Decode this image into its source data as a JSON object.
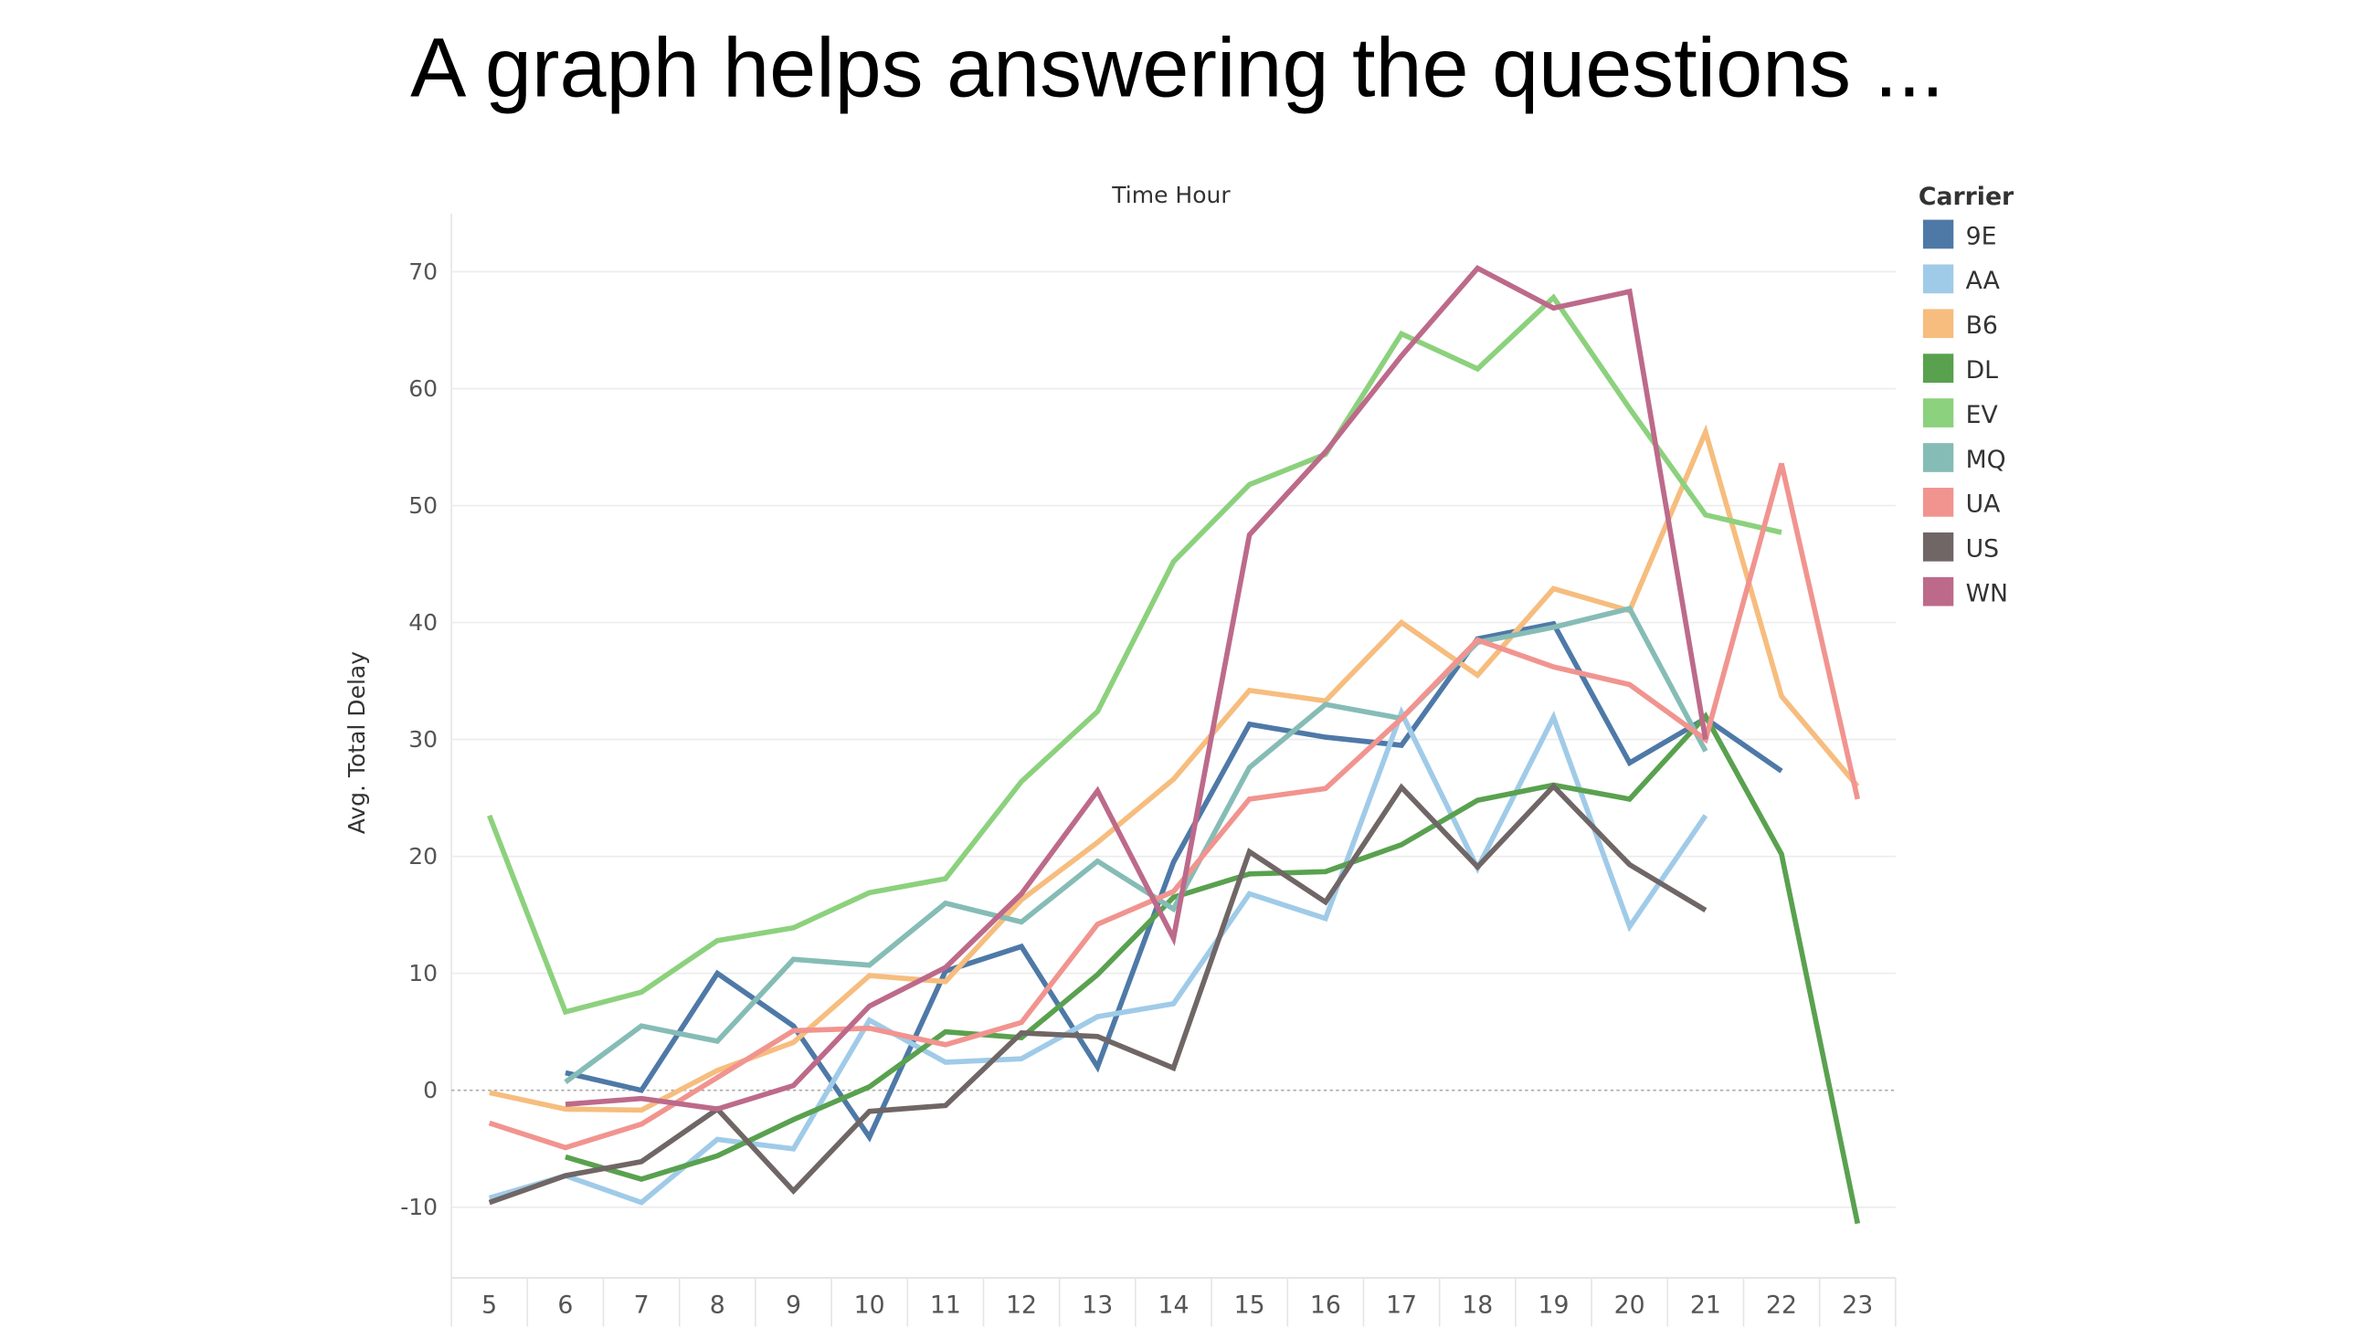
{
  "slide_title": "A graph helps answering the questions ...",
  "chart_data": {
    "type": "line",
    "title": "Time Hour",
    "xlabel": "Time Hour",
    "ylabel": "Avg. Total Delay",
    "x": [
      5,
      6,
      7,
      8,
      9,
      10,
      11,
      12,
      13,
      14,
      15,
      16,
      17,
      18,
      19,
      20,
      21,
      22,
      23
    ],
    "ylim": [
      -16,
      75
    ],
    "yticks": [
      -10,
      0,
      10,
      20,
      30,
      40,
      50,
      60,
      70
    ],
    "grid": true,
    "legend_title": "Carrier",
    "legend_position": "right",
    "series": [
      {
        "name": "9E",
        "color": "#4e79a7",
        "values": [
          null,
          1.5,
          0,
          10,
          5.5,
          -4,
          10.2,
          12.3,
          2,
          19.5,
          31.3,
          30.2,
          29.5,
          38.6,
          39.9,
          28,
          31.8,
          27.3,
          null
        ]
      },
      {
        "name": "AA",
        "color": "#a0cbe8",
        "values": [
          -9.2,
          -7.3,
          -9.6,
          -4.2,
          -5,
          6,
          2.4,
          2.7,
          6.3,
          7.4,
          16.8,
          14.7,
          32.3,
          19,
          31.9,
          14,
          23.5,
          null,
          null
        ]
      },
      {
        "name": "B6",
        "color": "#f6bd7e",
        "values": [
          -0.2,
          -1.6,
          -1.7,
          1.7,
          4.1,
          9.8,
          9.3,
          16.3,
          21.2,
          26.6,
          34.2,
          33.3,
          40,
          35.5,
          42.9,
          41,
          56.3,
          33.7,
          26
        ]
      },
      {
        "name": "DL",
        "color": "#59a14f",
        "values": [
          null,
          -5.7,
          -7.6,
          -5.6,
          -2.5,
          0.3,
          5,
          4.5,
          9.9,
          16.5,
          18.5,
          18.7,
          21,
          24.8,
          26.1,
          24.9,
          32,
          20.2,
          -11.4
        ]
      },
      {
        "name": "EV",
        "color": "#8cd17d",
        "values": [
          23.5,
          6.7,
          8.4,
          12.8,
          13.9,
          16.9,
          18.1,
          26.4,
          32.4,
          45.2,
          51.8,
          54.4,
          64.7,
          61.7,
          67.8,
          58.3,
          49.2,
          47.7,
          null
        ]
      },
      {
        "name": "MQ",
        "color": "#86bcb6",
        "values": [
          null,
          0.7,
          5.5,
          4.2,
          11.2,
          10.7,
          16,
          14.4,
          19.6,
          15.5,
          27.6,
          33,
          31.8,
          38.3,
          39.6,
          41.2,
          29,
          null,
          null
        ]
      },
      {
        "name": "UA",
        "color": "#f1948f",
        "values": [
          -2.8,
          -4.9,
          -2.9,
          1.1,
          5.1,
          5.3,
          3.9,
          5.8,
          14.2,
          17,
          24.9,
          25.8,
          31.8,
          38.5,
          36.2,
          34.7,
          30,
          53.6,
          24.9
        ]
      },
      {
        "name": "US",
        "color": "#6f6665",
        "values": [
          -9.6,
          -7.3,
          -6.1,
          -1.6,
          -8.6,
          -1.8,
          -1.3,
          4.9,
          4.6,
          1.9,
          20.4,
          16.1,
          25.9,
          19.1,
          26,
          19.3,
          15.4,
          null,
          null
        ]
      },
      {
        "name": "WN",
        "color": "#bd6a8a",
        "values": [
          null,
          -1.2,
          -0.7,
          -1.6,
          0.4,
          7.2,
          10.5,
          16.8,
          25.6,
          13,
          47.5,
          54.6,
          62.8,
          70.3,
          66.9,
          68.3,
          30,
          null,
          null
        ]
      }
    ]
  }
}
